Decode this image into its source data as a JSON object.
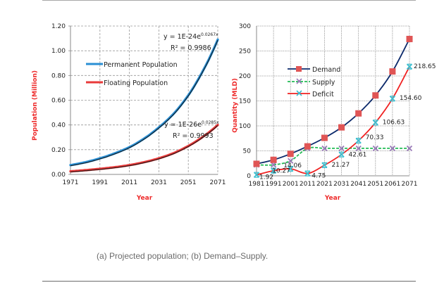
{
  "caption": "(a) Projected population; (b) Demand–Supply.",
  "colors": {
    "axis_label": "#ee2b2b",
    "permanent": "#2a8fd4",
    "floating": "#e83a3a",
    "trend": "#111111",
    "demand_line": "#0c2a6b",
    "demand_marker": "#e05555",
    "supply_line": "#22bb55",
    "supply_marker": "#9a7ab8",
    "deficit_line": "#f02020",
    "deficit_marker": "#3bbfd0",
    "grid": "#999999"
  },
  "chart_data": [
    {
      "type": "line",
      "title": "",
      "xlabel": "Year",
      "ylabel": "Population (Million)",
      "xlim": [
        1971,
        2071
      ],
      "ylim": [
        0,
        1.2
      ],
      "x_ticks": [
        "1971",
        "1991",
        "2011",
        "2031",
        "2051",
        "2071"
      ],
      "y_ticks": [
        "0.00",
        "0.20",
        "0.40",
        "0.60",
        "0.80",
        "1.00",
        "1.20"
      ],
      "grid": true,
      "legend_position": "upper-left",
      "x": [
        1971,
        1981,
        1991,
        2001,
        2011,
        2021,
        2031,
        2041,
        2051,
        2061,
        2071
      ],
      "series": [
        {
          "name": "Permanent Population",
          "values": [
            0.075,
            0.098,
            0.13,
            0.17,
            0.22,
            0.29,
            0.38,
            0.49,
            0.64,
            0.84,
            1.09
          ],
          "trendline": {
            "equation": "y = 1E-24e",
            "exponent": "0.0267x",
            "r2": "R² = 0.9986"
          }
        },
        {
          "name": "Floating Population",
          "values": [
            0.025,
            0.034,
            0.045,
            0.058,
            0.075,
            0.099,
            0.13,
            0.172,
            0.23,
            0.305,
            0.4
          ],
          "trendline": {
            "equation": "y = 1E-26e",
            "exponent": "0.0285x",
            "r2": "R² = 0.9993"
          }
        }
      ]
    },
    {
      "type": "line",
      "title": "",
      "xlabel": "Year",
      "ylabel": "Quantity (MLD)",
      "xlim": [
        1981,
        2071
      ],
      "ylim": [
        0,
        300
      ],
      "categories": [
        "1981",
        "1991",
        "2001",
        "2011",
        "2021",
        "2031",
        "2041",
        "2051",
        "2061",
        "2071"
      ],
      "y_ticks": [
        "0",
        "50",
        "100",
        "150",
        "200",
        "250",
        "300"
      ],
      "grid": true,
      "legend_position": "upper-left",
      "series": [
        {
          "name": "Demand",
          "marker": "square",
          "values": [
            24,
            32,
            44,
            59,
            76,
            97,
            125,
            161,
            209,
            274
          ]
        },
        {
          "name": "Supply",
          "marker": "x",
          "dashed": true,
          "values": [
            22,
            22,
            30,
            55,
            55,
            55,
            55,
            55,
            55,
            55
          ]
        },
        {
          "name": "Deficit",
          "marker": "x",
          "values": [
            1.92,
            10.27,
            14.06,
            4.75,
            21.27,
            42.61,
            70.33,
            106.63,
            154.6,
            218.65
          ],
          "data_labels": [
            "1.92",
            "10.27",
            "14.06",
            "4.75",
            "21.27",
            "42.61",
            "70.33",
            "106.63",
            "154.60",
            "218.65"
          ]
        }
      ]
    }
  ]
}
